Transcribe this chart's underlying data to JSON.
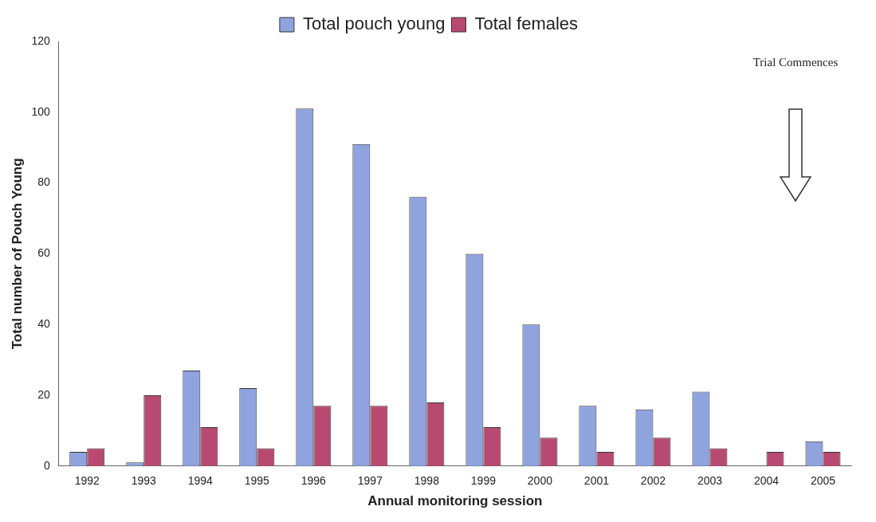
{
  "chart_data": {
    "type": "bar",
    "xlabel": "Annual monitoring session",
    "ylabel": "Total number of Pouch Young",
    "categories": [
      "1992",
      "1993",
      "1994",
      "1995",
      "1996",
      "1997",
      "1998",
      "1999",
      "2000",
      "2001",
      "2002",
      "2003",
      "2004",
      "2005"
    ],
    "series": [
      {
        "name": "Total pouch young",
        "color": "#8fa3de",
        "values": [
          4,
          1,
          27,
          22,
          101,
          91,
          76,
          60,
          40,
          17,
          16,
          21,
          0,
          7
        ]
      },
      {
        "name": "Total females",
        "color": "#b84a72",
        "values": [
          5,
          20,
          11,
          5,
          17,
          17,
          18,
          11,
          8,
          4,
          8,
          5,
          4,
          4
        ]
      }
    ],
    "ylim": [
      0,
      120
    ],
    "yticks": [
      0,
      20,
      40,
      60,
      80,
      100,
      120
    ],
    "grid": false,
    "legend": "top",
    "annotations": [
      "Trial Commences"
    ]
  }
}
